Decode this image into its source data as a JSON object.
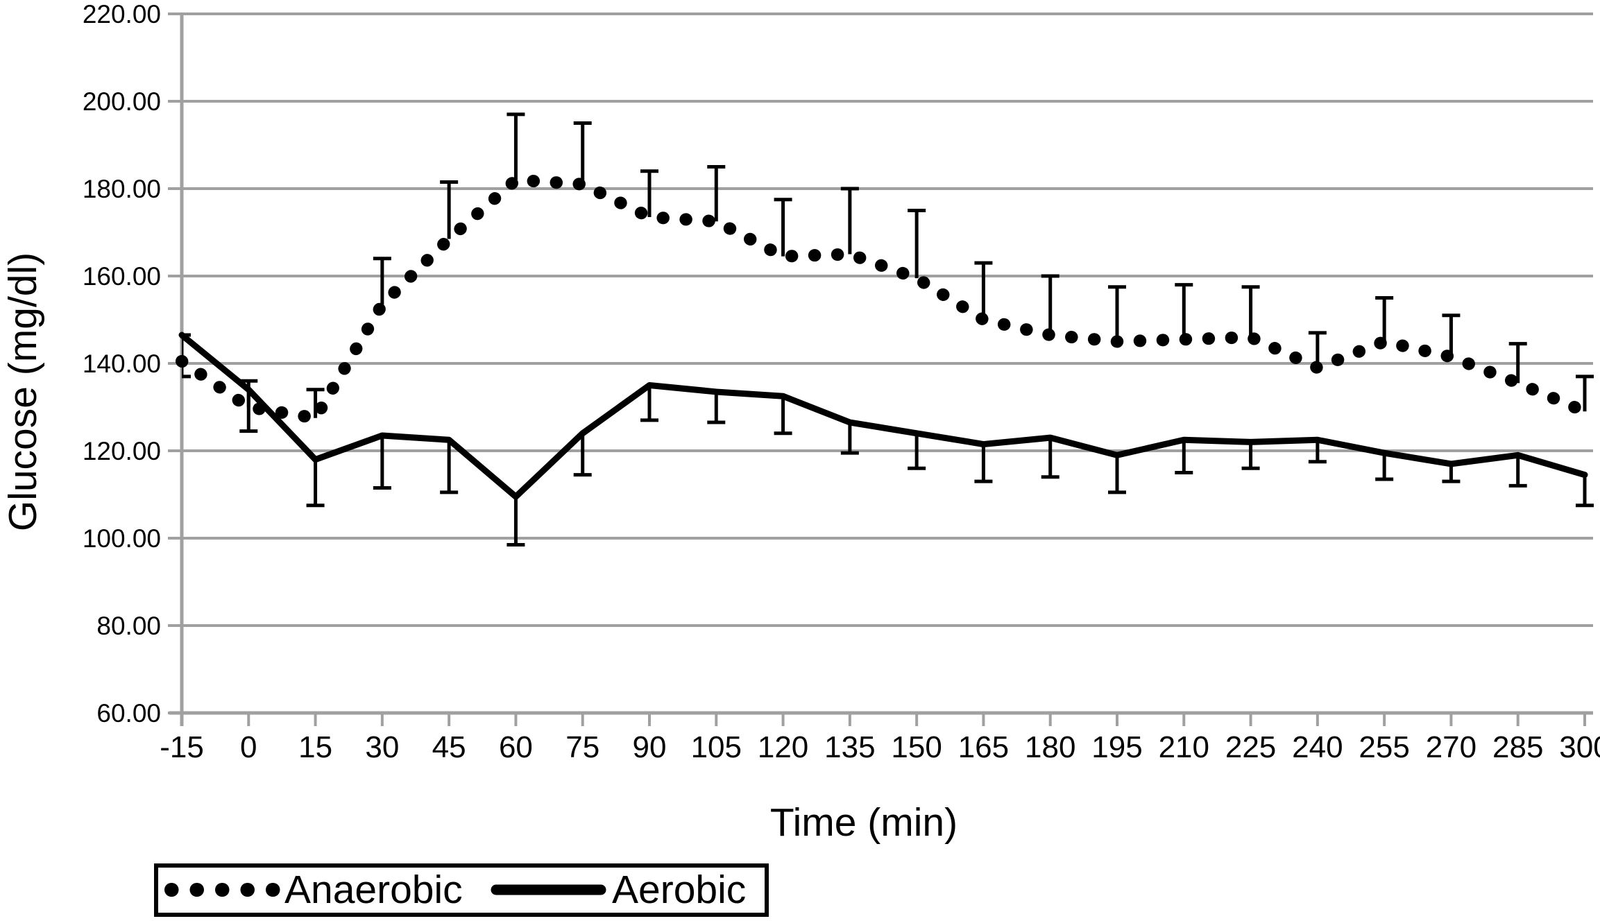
{
  "figure": {
    "y_axis": {
      "title": "Glucose (mg/dl)",
      "tick_labels": [
        "220.00",
        "200.00",
        "180.00",
        "160.00",
        "140.00",
        "120.00",
        "100.00",
        "80.00",
        "60.00"
      ]
    },
    "x_axis": {
      "title": "Time (min)",
      "tick_labels": [
        "-15",
        "0",
        "15",
        "30",
        "45",
        "60",
        "75",
        "90",
        "105",
        "120",
        "135",
        "150",
        "165",
        "180",
        "195",
        "210",
        "225",
        "240",
        "255",
        "270",
        "285",
        "300"
      ]
    },
    "legend": {
      "items": [
        {
          "label": "Anaerobic",
          "style": "dotted"
        },
        {
          "label": "Aerobic",
          "style": "solid"
        }
      ]
    },
    "colors": {
      "series": "#000000",
      "grid": "#a0a0a0",
      "background": "#ffffff"
    }
  },
  "chart_data": {
    "type": "line",
    "title": "",
    "xlabel": "Time (min)",
    "ylabel": "Glucose (mg/dl)",
    "ylim": [
      60,
      220
    ],
    "ytick_step": 20,
    "xlim": [
      -15,
      300
    ],
    "grid": "horizontal",
    "legend_position": "bottom-left",
    "x": [
      -15,
      0,
      15,
      30,
      45,
      60,
      75,
      90,
      105,
      120,
      135,
      150,
      165,
      180,
      195,
      210,
      225,
      240,
      255,
      270,
      285,
      300
    ],
    "series": [
      {
        "name": "Anaerobic",
        "line_style": "dotted",
        "color": "#000000",
        "error_bar_direction": "up",
        "values": [
          140.5,
          130,
          127.5,
          153.5,
          168.5,
          182,
          181,
          173.5,
          172.5,
          164.5,
          165,
          159.5,
          150,
          146.5,
          145,
          145.5,
          146,
          139,
          145,
          141.5,
          135.5,
          129
        ],
        "error_top": [
          146.5,
          136,
          134,
          164,
          181.5,
          197,
          195,
          184,
          185,
          177.5,
          180,
          175,
          163,
          160,
          157.5,
          158,
          157.5,
          147,
          155,
          151,
          144.5,
          137
        ]
      },
      {
        "name": "Aerobic",
        "line_style": "solid",
        "color": "#000000",
        "error_bar_direction": "down",
        "values": [
          146.5,
          134,
          118,
          123.5,
          122.5,
          109.5,
          124,
          135,
          133.5,
          132.5,
          126.5,
          124,
          121.5,
          123,
          119,
          122.5,
          122,
          122.5,
          119.5,
          117,
          119,
          114.5
        ],
        "error_bottom": [
          137,
          124.5,
          107.5,
          111.5,
          110.5,
          98.5,
          114.5,
          127,
          126.5,
          124,
          119.5,
          116,
          113,
          114,
          110.5,
          115,
          116,
          117.5,
          113.5,
          113,
          112,
          107.5
        ]
      }
    ]
  }
}
